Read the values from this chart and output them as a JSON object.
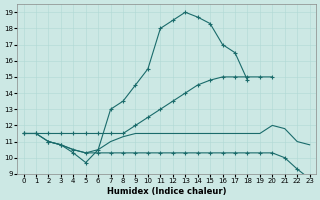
{
  "xlabel": "Humidex (Indice chaleur)",
  "bg_color": "#cce8e4",
  "line_color": "#1a6b6b",
  "grid_color": "#b0d8d4",
  "xlim": [
    -0.5,
    23.5
  ],
  "ylim": [
    9,
    19.5
  ],
  "yticks": [
    9,
    10,
    11,
    12,
    13,
    14,
    15,
    16,
    17,
    18,
    19
  ],
  "xticks": [
    0,
    1,
    2,
    3,
    4,
    5,
    6,
    7,
    8,
    9,
    10,
    11,
    12,
    13,
    14,
    15,
    16,
    17,
    18,
    19,
    20,
    21,
    22,
    23
  ],
  "series": [
    {
      "x": [
        2,
        3,
        4,
        5,
        6,
        7,
        8,
        9,
        10,
        11,
        12,
        13,
        14,
        15,
        16,
        17,
        18
      ],
      "y": [
        11.0,
        10.8,
        10.3,
        9.7,
        10.5,
        13.0,
        13.5,
        14.5,
        15.5,
        18.0,
        18.5,
        19.0,
        18.7,
        18.3,
        17.0,
        16.5,
        14.8
      ],
      "markers": true
    },
    {
      "x": [
        0,
        1,
        2,
        3,
        4,
        5,
        6,
        7,
        8,
        9,
        10,
        11,
        12,
        13,
        14,
        15,
        16,
        17,
        18,
        19,
        20
      ],
      "y": [
        11.5,
        11.5,
        11.5,
        11.5,
        11.5,
        11.5,
        11.5,
        11.5,
        11.5,
        12.0,
        12.5,
        13.0,
        13.5,
        14.0,
        14.5,
        14.8,
        15.0,
        15.0,
        15.0,
        15.0,
        15.0
      ],
      "markers": true
    },
    {
      "x": [
        0,
        1,
        2,
        3,
        4,
        5,
        6,
        7,
        8,
        9,
        10,
        11,
        12,
        13,
        14,
        15,
        16,
        17,
        18,
        19,
        20,
        21,
        22,
        23
      ],
      "y": [
        11.5,
        11.5,
        11.0,
        10.8,
        10.5,
        10.3,
        10.5,
        11.0,
        11.3,
        11.5,
        11.5,
        11.5,
        11.5,
        11.5,
        11.5,
        11.5,
        11.5,
        11.5,
        11.5,
        11.5,
        12.0,
        11.8,
        11.0,
        10.8
      ],
      "markers": false
    },
    {
      "x": [
        0,
        1,
        2,
        3,
        4,
        5,
        6,
        7,
        8,
        9,
        10,
        11,
        12,
        13,
        14,
        15,
        16,
        17,
        18,
        19,
        20,
        21,
        22,
        23
      ],
      "y": [
        11.5,
        11.5,
        11.0,
        10.8,
        10.5,
        10.3,
        10.3,
        10.3,
        10.3,
        10.3,
        10.3,
        10.3,
        10.3,
        10.3,
        10.3,
        10.3,
        10.3,
        10.3,
        10.3,
        10.3,
        10.3,
        10.0,
        9.3,
        8.7
      ],
      "markers": true
    }
  ]
}
